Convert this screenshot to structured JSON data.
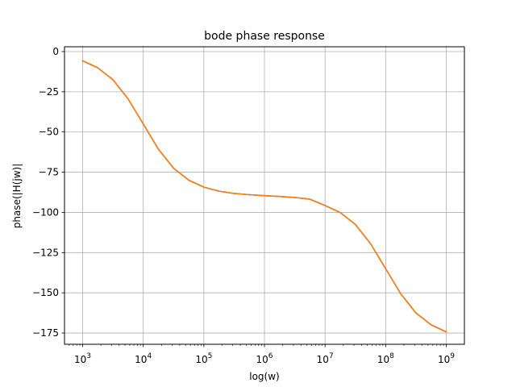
{
  "chart_data": {
    "type": "line",
    "title": "bode phase response",
    "xlabel": "log(w)",
    "ylabel": "phase(|H(jw)|",
    "xscale": "log",
    "xlim": [
      1000,
      1000000000
    ],
    "ylim": [
      -182,
      3
    ],
    "grid": true,
    "colors": [
      "#1f77b4",
      "#ff7f0e"
    ],
    "x_ticks": [
      {
        "value": 1000,
        "base": "10",
        "exp": "3"
      },
      {
        "value": 10000,
        "base": "10",
        "exp": "4"
      },
      {
        "value": 100000,
        "base": "10",
        "exp": "5"
      },
      {
        "value": 1000000,
        "base": "10",
        "exp": "6"
      },
      {
        "value": 10000000,
        "base": "10",
        "exp": "7"
      },
      {
        "value": 100000000,
        "base": "10",
        "exp": "8"
      },
      {
        "value": 1000000000,
        "base": "10",
        "exp": "9"
      }
    ],
    "y_ticks": [
      {
        "value": 0,
        "label": "0"
      },
      {
        "value": -25,
        "label": "−25"
      },
      {
        "value": -50,
        "label": "−50"
      },
      {
        "value": -75,
        "label": "−75"
      },
      {
        "value": -100,
        "label": "−100"
      },
      {
        "value": -125,
        "label": "−125"
      },
      {
        "value": -150,
        "label": "−150"
      },
      {
        "value": -175,
        "label": "−175"
      }
    ],
    "series": [
      {
        "x": [
          1000,
          1780,
          3160,
          5620,
          10000,
          17800,
          31600,
          56200,
          100000,
          178000,
          316000,
          562000,
          1000000,
          1780000,
          3160000,
          5620000,
          10000000,
          17800000,
          31600000,
          56200000,
          100000000,
          178000000,
          316000000,
          562000000,
          1000000000
        ],
        "y": [
          -5.7,
          -10.1,
          -17.5,
          -29.4,
          -45.0,
          -60.7,
          -72.5,
          -79.9,
          -84.3,
          -86.8,
          -88.2,
          -89.0,
          -89.6,
          -90.1,
          -90.7,
          -91.8,
          -95.7,
          -100.1,
          -107.5,
          -119.4,
          -135.0,
          -150.7,
          -162.5,
          -169.9,
          -174.3
        ]
      },
      {
        "x": [
          1000,
          1780,
          3160,
          5620,
          10000,
          17800,
          31600,
          56200,
          100000,
          178000,
          316000,
          562000,
          1000000,
          1780000,
          3160000,
          5620000,
          10000000,
          17800000,
          31600000,
          56200000,
          100000000,
          178000000,
          316000000,
          562000000,
          1000000000
        ],
        "y": [
          -5.7,
          -10.1,
          -17.5,
          -29.4,
          -45.0,
          -60.7,
          -72.5,
          -79.9,
          -84.3,
          -86.8,
          -88.2,
          -89.0,
          -89.6,
          -90.1,
          -90.7,
          -91.8,
          -95.7,
          -100.1,
          -107.5,
          -119.4,
          -135.0,
          -150.7,
          -162.5,
          -169.9,
          -174.3
        ]
      }
    ]
  }
}
